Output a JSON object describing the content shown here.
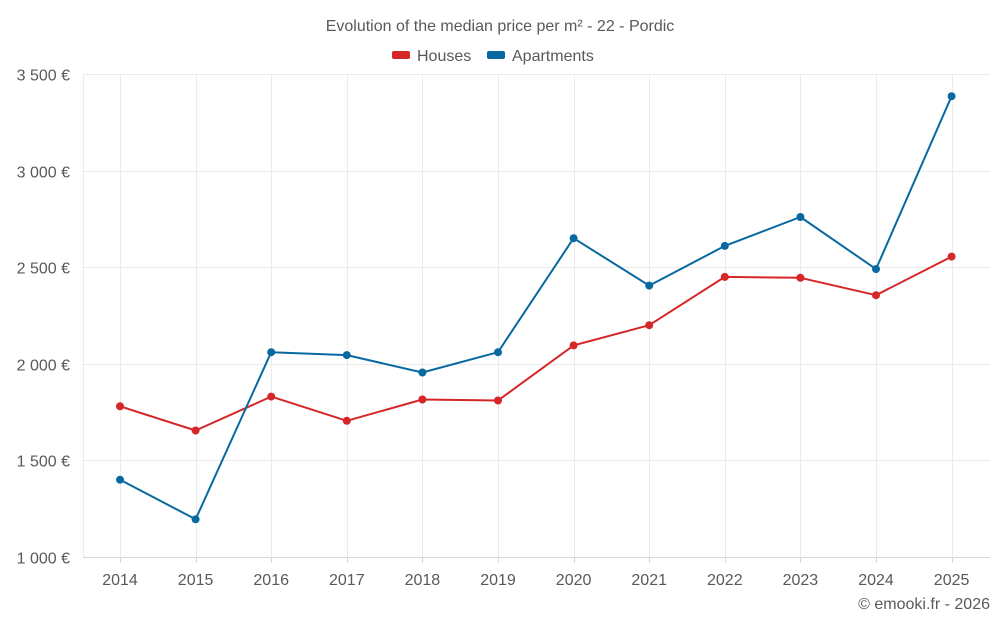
{
  "chart_data": {
    "type": "line",
    "title": "Evolution of the median price per m² - 22 - Pordic",
    "xlabel": "",
    "ylabel": "",
    "categories": [
      "2014",
      "2015",
      "2016",
      "2017",
      "2018",
      "2019",
      "2020",
      "2021",
      "2022",
      "2023",
      "2024",
      "2025"
    ],
    "series": [
      {
        "name": "Houses",
        "color": "#d62728",
        "values": [
          1780,
          1655,
          1830,
          1705,
          1815,
          1810,
          2095,
          2200,
          2450,
          2445,
          2355,
          2555
        ]
      },
      {
        "name": "Apartments",
        "color": "#0868a0",
        "values": [
          1400,
          1195,
          2060,
          2045,
          1955,
          2060,
          2650,
          2405,
          2610,
          2760,
          2490,
          3385
        ]
      }
    ],
    "ylim": [
      1000,
      3500
    ],
    "yticks": [
      1000,
      1500,
      2000,
      2500,
      3000,
      3500
    ],
    "ytick_labels": [
      "1 000 €",
      "1 500 €",
      "2 000 €",
      "2 500 €",
      "3 000 €",
      "3 500 €"
    ],
    "grid": true,
    "legend_position": "top-center",
    "credit": "© emooki.fr - 2026"
  }
}
